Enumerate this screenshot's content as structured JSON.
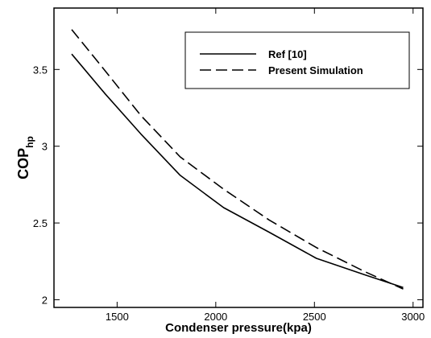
{
  "chart_data": {
    "type": "line",
    "title": "",
    "xlabel": "Condenser pressure(kpa)",
    "ylabel": "COP",
    "ylabel_sub": "hp",
    "xlim": [
      1180,
      3050
    ],
    "ylim": [
      1.95,
      3.9
    ],
    "xticks": [
      1500,
      2000,
      2500,
      3000
    ],
    "yticks": [
      2,
      2.5,
      3,
      3.5
    ],
    "xtick_labels": [
      "1500",
      "2000",
      "2500",
      "3000"
    ],
    "ytick_labels": [
      "2",
      "2.5",
      "3",
      "3.5"
    ],
    "legend_position": "top-right",
    "grid": false,
    "series": [
      {
        "name": "Ref [10]",
        "style": "solid",
        "color": "#000000",
        "x": [
          1270,
          1440,
          1620,
          1820,
          2040,
          2270,
          2510,
          2760,
          2950
        ],
        "y": [
          3.6,
          3.34,
          3.08,
          2.81,
          2.6,
          2.44,
          2.27,
          2.16,
          2.08
        ]
      },
      {
        "name": "Present Simulation",
        "style": "dashed",
        "color": "#000000",
        "x": [
          1270,
          1440,
          1620,
          1820,
          2040,
          2270,
          2510,
          2760,
          2950
        ],
        "y": [
          3.76,
          3.49,
          3.2,
          2.93,
          2.72,
          2.52,
          2.34,
          2.18,
          2.07
        ]
      }
    ]
  }
}
